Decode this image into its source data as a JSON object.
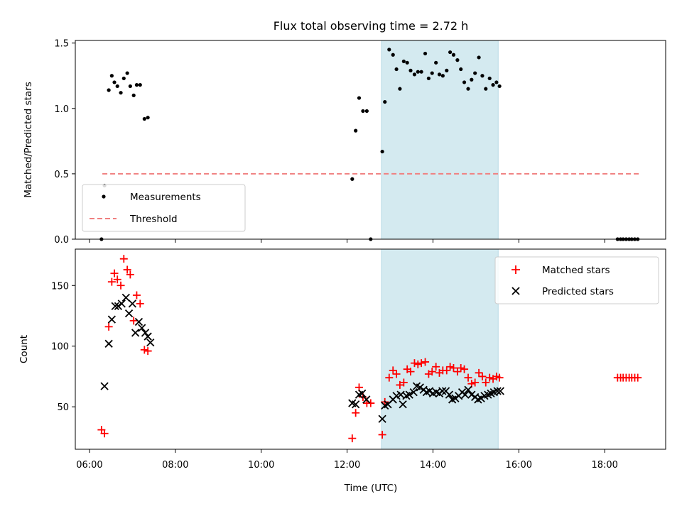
{
  "chart_data": {
    "type": "scatter",
    "title": "Flux total observing time = 2.72 h",
    "xlabel": "Time (UTC)",
    "x_ticks": [
      "06:00",
      "08:00",
      "10:00",
      "12:00",
      "14:00",
      "16:00",
      "18:00"
    ],
    "x_range_hours": [
      5.67,
      19.42
    ],
    "highlight_span_hours": [
      12.8,
      15.52
    ],
    "highlight_color": "#d4eaf0",
    "panels": [
      {
        "ylabel": "Matched/Predicted stars",
        "ylim": [
          0,
          1.52
        ],
        "y_ticks": [
          "0.0",
          "0.5",
          "1.0",
          "1.5"
        ],
        "y_tick_values": [
          0.0,
          0.5,
          1.0,
          1.5
        ],
        "legend_position": "lower-left",
        "series": [
          {
            "name": "Measurements",
            "marker": "dot",
            "color": "#000000",
            "points": [
              [
                6.28,
                0.0
              ],
              [
                6.35,
                0.41
              ],
              [
                6.45,
                1.14
              ],
              [
                6.52,
                1.25
              ],
              [
                6.58,
                1.2
              ],
              [
                6.65,
                1.17
              ],
              [
                6.73,
                1.12
              ],
              [
                6.8,
                1.23
              ],
              [
                6.88,
                1.27
              ],
              [
                6.95,
                1.17
              ],
              [
                7.03,
                1.1
              ],
              [
                7.1,
                1.18
              ],
              [
                7.18,
                1.18
              ],
              [
                7.28,
                0.92
              ],
              [
                7.36,
                0.93
              ],
              [
                12.12,
                0.46
              ],
              [
                12.2,
                0.83
              ],
              [
                12.28,
                1.08
              ],
              [
                12.37,
                0.98
              ],
              [
                12.46,
                0.98
              ],
              [
                12.55,
                0.0
              ],
              [
                12.82,
                0.67
              ],
              [
                12.88,
                1.05
              ],
              [
                12.98,
                1.45
              ],
              [
                13.07,
                1.41
              ],
              [
                13.15,
                1.3
              ],
              [
                13.23,
                1.15
              ],
              [
                13.32,
                1.36
              ],
              [
                13.4,
                1.35
              ],
              [
                13.48,
                1.29
              ],
              [
                13.57,
                1.26
              ],
              [
                13.65,
                1.28
              ],
              [
                13.73,
                1.28
              ],
              [
                13.82,
                1.42
              ],
              [
                13.9,
                1.23
              ],
              [
                13.98,
                1.27
              ],
              [
                14.07,
                1.35
              ],
              [
                14.15,
                1.26
              ],
              [
                14.23,
                1.25
              ],
              [
                14.32,
                1.29
              ],
              [
                14.4,
                1.43
              ],
              [
                14.48,
                1.41
              ],
              [
                14.57,
                1.37
              ],
              [
                14.65,
                1.3
              ],
              [
                14.73,
                1.2
              ],
              [
                14.82,
                1.15
              ],
              [
                14.9,
                1.22
              ],
              [
                14.98,
                1.27
              ],
              [
                15.07,
                1.39
              ],
              [
                15.15,
                1.25
              ],
              [
                15.23,
                1.15
              ],
              [
                15.32,
                1.23
              ],
              [
                15.4,
                1.18
              ],
              [
                15.48,
                1.2
              ],
              [
                15.55,
                1.17
              ],
              [
                18.3,
                0.0
              ],
              [
                18.37,
                0.0
              ],
              [
                18.43,
                0.0
              ],
              [
                18.5,
                0.0
              ],
              [
                18.57,
                0.0
              ],
              [
                18.63,
                0.0
              ],
              [
                18.7,
                0.0
              ],
              [
                18.77,
                0.0
              ]
            ]
          },
          {
            "name": "Threshold",
            "marker": "dashed-line",
            "color": "#f08080",
            "x": [
              6.3,
              18.8
            ],
            "y": 0.5
          }
        ]
      },
      {
        "ylabel": "Count",
        "ylim": [
          15,
          180
        ],
        "y_ticks": [
          "50",
          "100",
          "150"
        ],
        "y_tick_values": [
          50,
          100,
          150
        ],
        "legend_position": "upper-right",
        "series": [
          {
            "name": "Matched stars",
            "marker": "plus",
            "color": "#ff0000",
            "points": [
              [
                6.28,
                31
              ],
              [
                6.35,
                28
              ],
              [
                6.45,
                116
              ],
              [
                6.52,
                153
              ],
              [
                6.58,
                160
              ],
              [
                6.65,
                155
              ],
              [
                6.73,
                150
              ],
              [
                6.8,
                172
              ],
              [
                6.88,
                163
              ],
              [
                6.95,
                159
              ],
              [
                7.03,
                121
              ],
              [
                7.1,
                142
              ],
              [
                7.18,
                135
              ],
              [
                7.28,
                97
              ],
              [
                7.36,
                96
              ],
              [
                12.12,
                24
              ],
              [
                12.2,
                45
              ],
              [
                12.28,
                66
              ],
              [
                12.37,
                58
              ],
              [
                12.46,
                53
              ],
              [
                12.55,
                53
              ],
              [
                12.82,
                27
              ],
              [
                12.88,
                54
              ],
              [
                12.98,
                74
              ],
              [
                13.07,
                80
              ],
              [
                13.15,
                77
              ],
              [
                13.23,
                68
              ],
              [
                13.32,
                70
              ],
              [
                13.4,
                81
              ],
              [
                13.48,
                79
              ],
              [
                13.57,
                86
              ],
              [
                13.65,
                85
              ],
              [
                13.73,
                86
              ],
              [
                13.82,
                87
              ],
              [
                13.9,
                77
              ],
              [
                13.98,
                79
              ],
              [
                14.07,
                83
              ],
              [
                14.15,
                78
              ],
              [
                14.23,
                80
              ],
              [
                14.32,
                80
              ],
              [
                14.4,
                83
              ],
              [
                14.48,
                82
              ],
              [
                14.57,
                79
              ],
              [
                14.65,
                82
              ],
              [
                14.73,
                81
              ],
              [
                14.82,
                74
              ],
              [
                14.9,
                69
              ],
              [
                14.98,
                70
              ],
              [
                15.07,
                78
              ],
              [
                15.15,
                75
              ],
              [
                15.23,
                70
              ],
              [
                15.32,
                74
              ],
              [
                15.4,
                73
              ],
              [
                15.48,
                75
              ],
              [
                15.55,
                74
              ],
              [
                18.3,
                74
              ],
              [
                18.37,
                74
              ],
              [
                18.43,
                74
              ],
              [
                18.5,
                74
              ],
              [
                18.57,
                74
              ],
              [
                18.63,
                74
              ],
              [
                18.7,
                74
              ],
              [
                18.77,
                74
              ]
            ]
          },
          {
            "name": "Predicted stars",
            "marker": "x",
            "color": "#000000",
            "points": [
              [
                6.35,
                67
              ],
              [
                6.45,
                102
              ],
              [
                6.52,
                122
              ],
              [
                6.6,
                133
              ],
              [
                6.67,
                133
              ],
              [
                6.75,
                135
              ],
              [
                6.85,
                140
              ],
              [
                6.92,
                127
              ],
              [
                7.0,
                135
              ],
              [
                7.07,
                111
              ],
              [
                7.15,
                120
              ],
              [
                7.22,
                115
              ],
              [
                7.3,
                111
              ],
              [
                7.36,
                108
              ],
              [
                7.42,
                103
              ],
              [
                12.12,
                53
              ],
              [
                12.2,
                52
              ],
              [
                12.28,
                60
              ],
              [
                12.35,
                61
              ],
              [
                12.45,
                56
              ],
              [
                12.82,
                40
              ],
              [
                12.88,
                51
              ],
              [
                12.95,
                52
              ],
              [
                13.07,
                56
              ],
              [
                13.15,
                59
              ],
              [
                13.25,
                60
              ],
              [
                13.3,
                52
              ],
              [
                13.38,
                59
              ],
              [
                13.45,
                60
              ],
              [
                13.55,
                62
              ],
              [
                13.62,
                67
              ],
              [
                13.7,
                66
              ],
              [
                13.78,
                64
              ],
              [
                13.85,
                62
              ],
              [
                13.92,
                63
              ],
              [
                14.0,
                61
              ],
              [
                14.08,
                62
              ],
              [
                14.15,
                61
              ],
              [
                14.22,
                63
              ],
              [
                14.3,
                63
              ],
              [
                14.38,
                60
              ],
              [
                14.45,
                56
              ],
              [
                14.52,
                57
              ],
              [
                14.6,
                59
              ],
              [
                14.68,
                62
              ],
              [
                14.75,
                60
              ],
              [
                14.82,
                64
              ],
              [
                14.9,
                60
              ],
              [
                14.98,
                58
              ],
              [
                15.05,
                56
              ],
              [
                15.12,
                57
              ],
              [
                15.2,
                59
              ],
              [
                15.28,
                60
              ],
              [
                15.35,
                61
              ],
              [
                15.42,
                62
              ],
              [
                15.5,
                63
              ],
              [
                15.57,
                63
              ]
            ]
          }
        ]
      }
    ]
  }
}
